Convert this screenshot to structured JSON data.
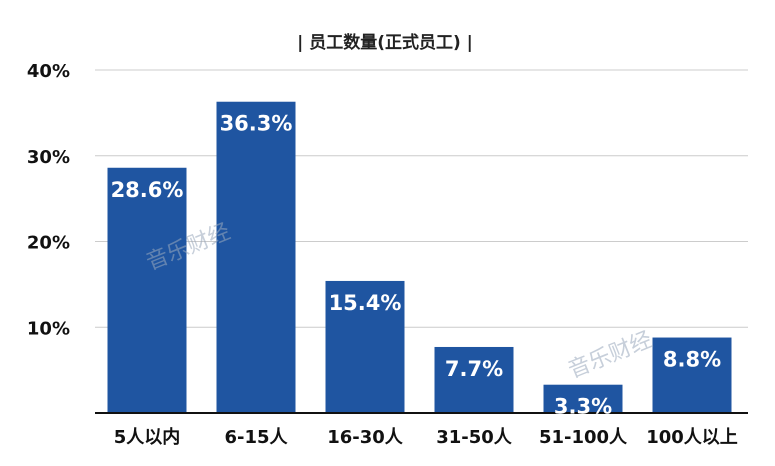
{
  "chart_data": {
    "type": "bar",
    "title": "| 员工数量(正式员工) |",
    "categories": [
      "5人以内",
      "6-15人",
      "16-30人",
      "31-50人",
      "51-100人",
      "100人以上"
    ],
    "values": [
      28.6,
      36.3,
      15.4,
      7.7,
      3.3,
      8.8
    ],
    "value_labels": [
      "28.6%",
      "36.3%",
      "15.4%",
      "7.7%",
      "3.3%",
      "8.8%"
    ],
    "y_ticks": [
      10,
      20,
      30,
      40
    ],
    "y_tick_labels": [
      "10%",
      "20%",
      "30%",
      "40%"
    ],
    "ylim": [
      0,
      40
    ],
    "grid": true,
    "bar_color": "#1f55a1",
    "grid_color": "#cccccc"
  },
  "watermarks": [
    "音乐财经",
    "音乐财经"
  ]
}
